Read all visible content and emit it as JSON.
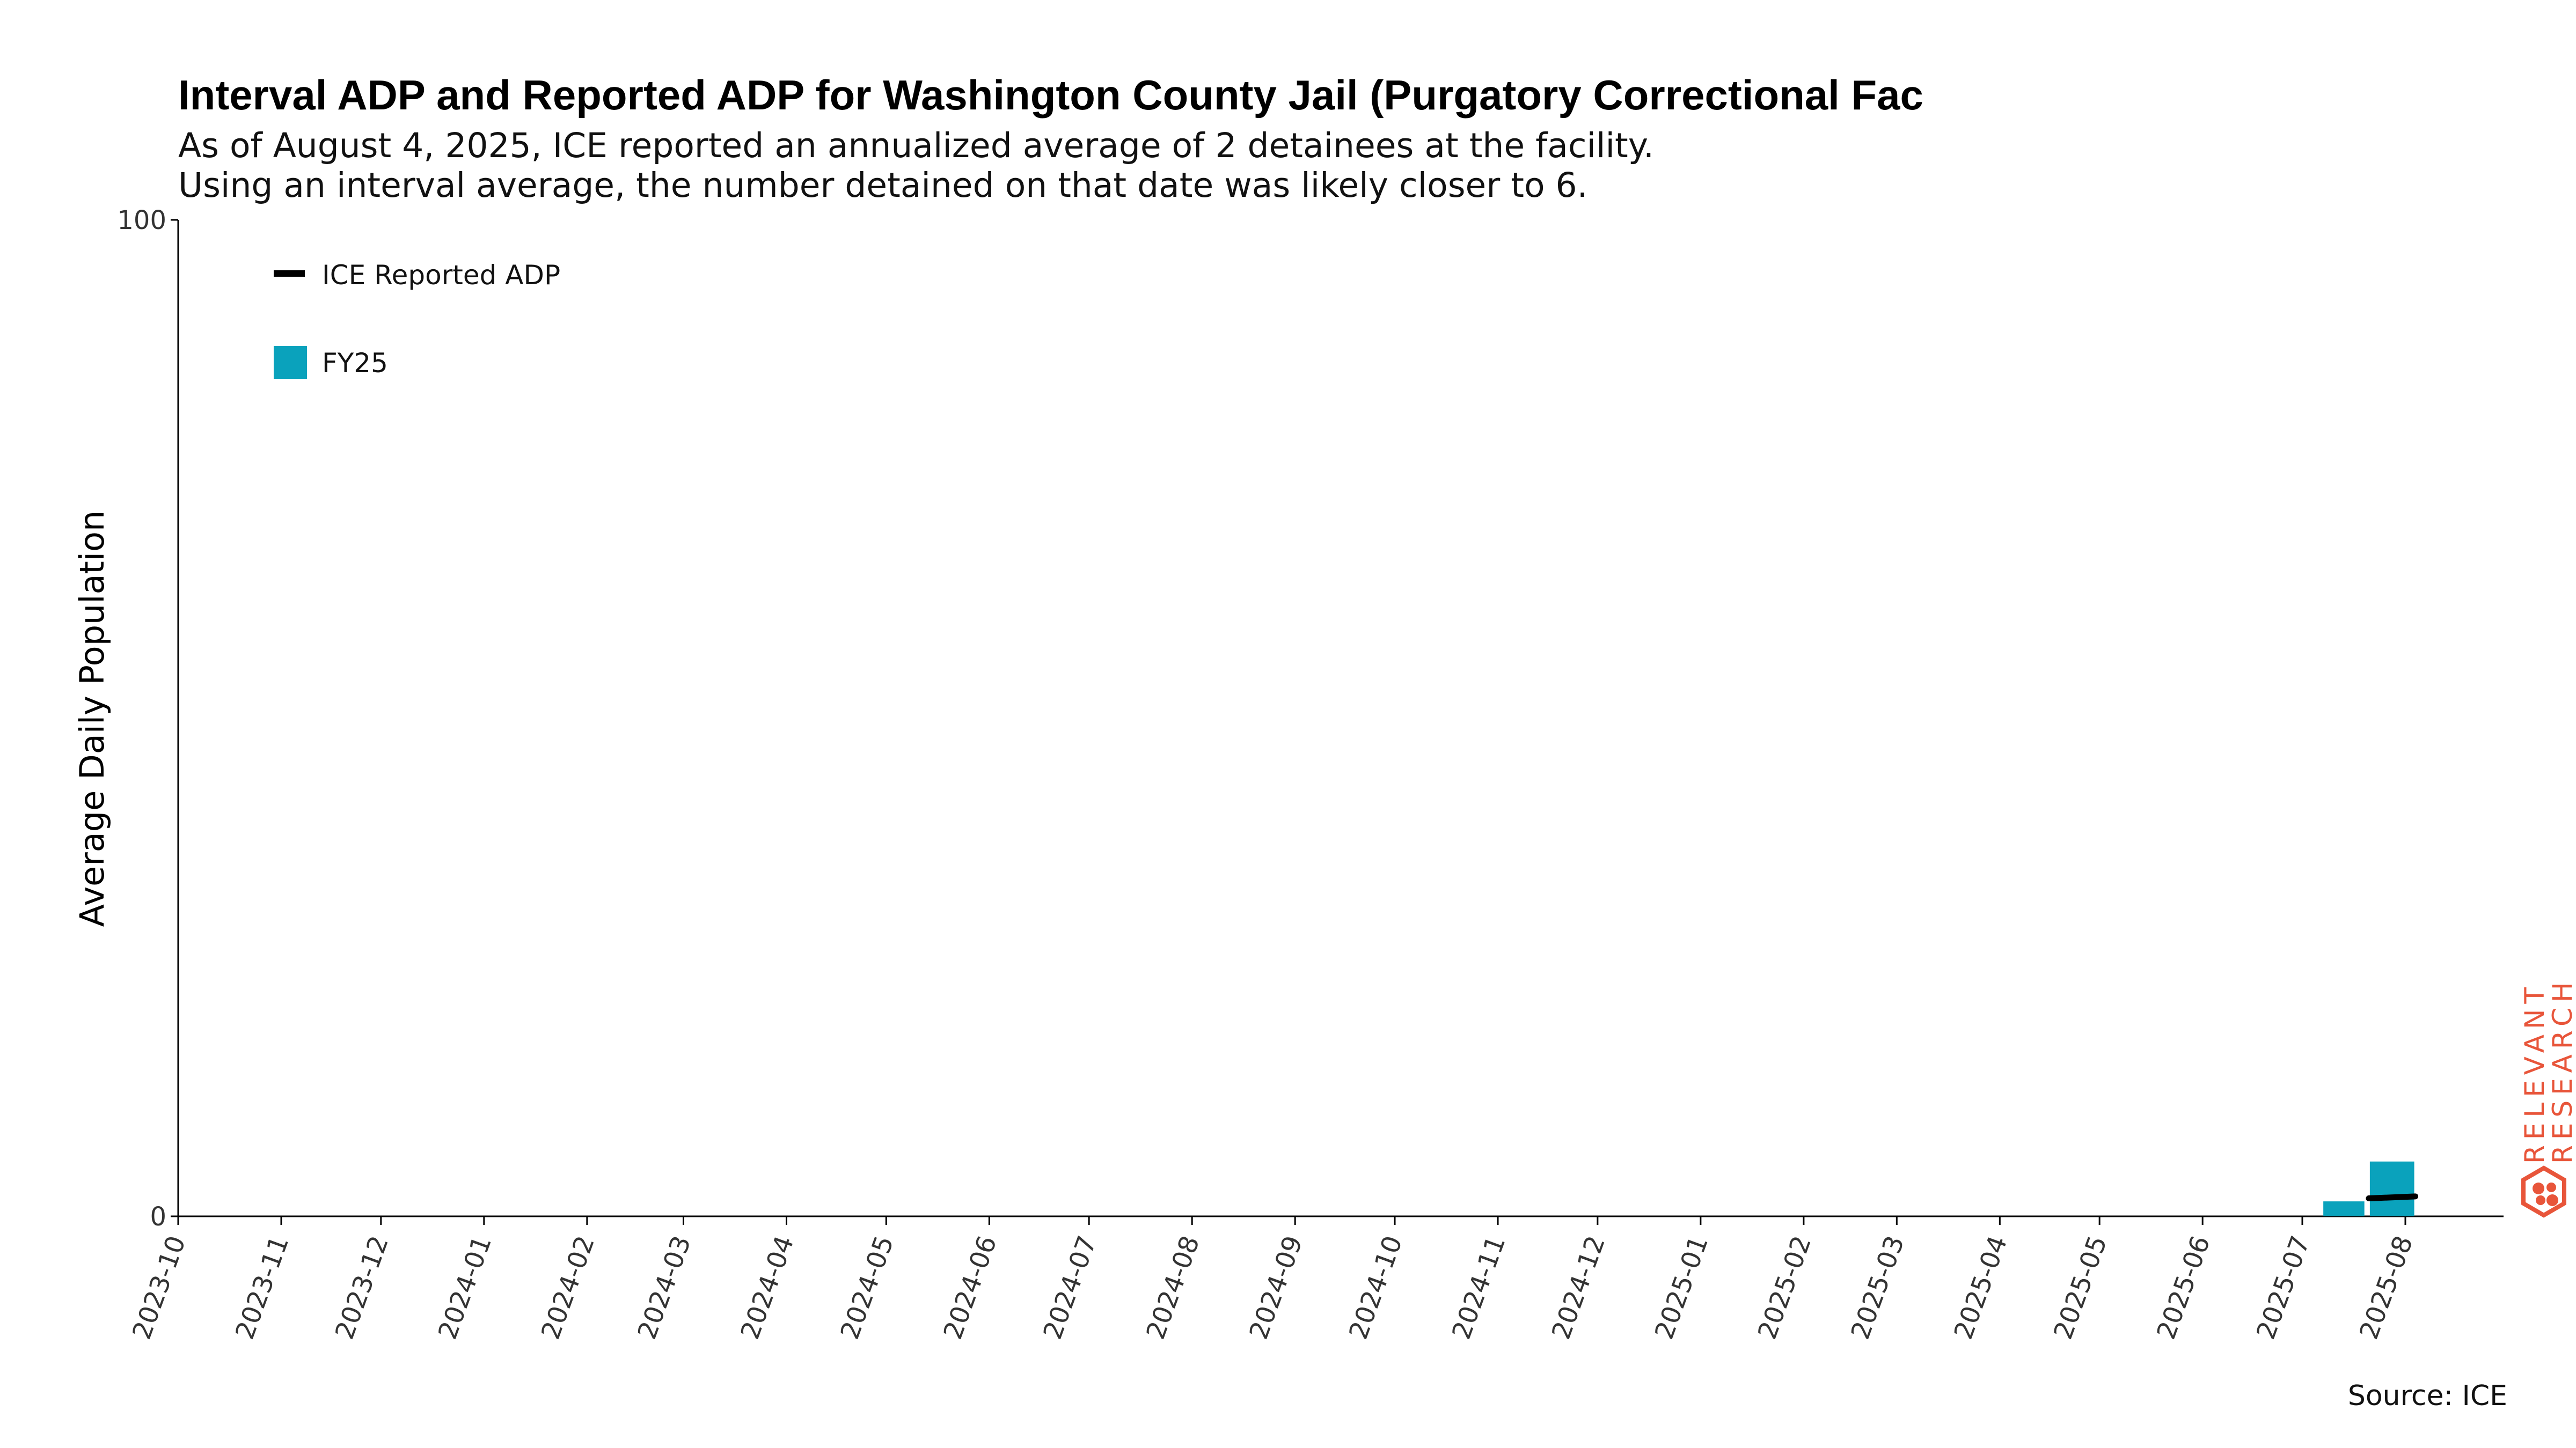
{
  "chart_data": {
    "type": "bar",
    "title": "Interval ADP and Reported ADP for Washington County Jail (Purgatory Correctional Fac",
    "subtitle_lines": [
      "As of August 4, 2025, ICE reported an annualized average of 2 detainees at the facility.",
      "Using an interval average, the number detained on that date was likely closer to 6."
    ],
    "ylabel": "Average Daily Population",
    "xlabel": "",
    "ylim": [
      0,
      100
    ],
    "y_ticks": [
      "0",
      "100"
    ],
    "x_ticks": [
      "2023-10",
      "2023-11",
      "2023-12",
      "2024-01",
      "2024-02",
      "2024-03",
      "2024-04",
      "2024-05",
      "2024-06",
      "2024-07",
      "2024-08",
      "2024-09",
      "2024-10",
      "2024-11",
      "2024-12",
      "2025-01",
      "2025-02",
      "2025-03",
      "2025-04",
      "2025-05",
      "2025-06",
      "2025-07",
      "2025-08"
    ],
    "bars": [
      {
        "start": "2025-07-07",
        "end": "2025-07-20",
        "value": 1.5
      },
      {
        "start": "2025-07-21",
        "end": "2025-08-04",
        "value": 5.5
      }
    ],
    "reported_line": [
      {
        "x": "2025-07-21",
        "y": 1.8
      },
      {
        "x": "2025-08-04",
        "y": 2.0
      }
    ],
    "legend": [
      {
        "label": "ICE Reported ADP",
        "kind": "line",
        "color": "#000000"
      },
      {
        "label": "FY25",
        "kind": "box",
        "color": "#0aa2bc"
      }
    ],
    "legend_position": "top-left",
    "grid": false,
    "source": "Source: ICE",
    "brand_lines": [
      "RELEVANT",
      "RESEARCH"
    ],
    "colors": {
      "bar": "#0aa2bc",
      "line": "#000000",
      "brand": "#e8553a"
    }
  }
}
